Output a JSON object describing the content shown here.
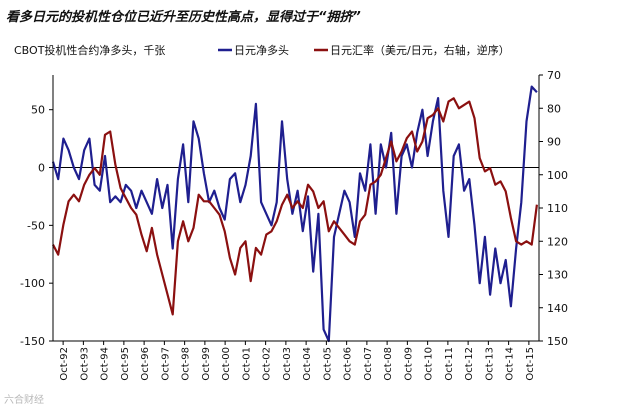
{
  "page": {
    "title": "看多日元的投机性仓位已近升至历史性高点，显得过于“拥挤”",
    "watermark": "六合财经"
  },
  "chart_data": {
    "type": "line",
    "title": "看多日元的投机性仓位已近升至历史性高点，显得过于“拥挤”",
    "left_axis_label": "CBOT投机性合约净多头，千张",
    "right_axis_label": "",
    "ylim": [
      -150,
      80
    ],
    "y_ticks": [
      50,
      0,
      -50,
      -100,
      -150
    ],
    "y2lim": [
      150,
      70
    ],
    "y2_ticks": [
      70,
      80,
      90,
      100,
      110,
      120,
      130,
      140,
      150
    ],
    "y2_inverted": true,
    "xlim": [
      1992.75,
      2016.1
    ],
    "x_tick_labels": [
      "Oct-92",
      "Oct-93",
      "Oct-94",
      "Oct-95",
      "Oct-96",
      "Oct-97",
      "Oct-98",
      "Oct-99",
      "Oct-00",
      "Oct-01",
      "Oct-02",
      "Oct-03",
      "Oct-04",
      "Oct-05",
      "Oct-06",
      "Oct-07",
      "Oct-08",
      "Oct-09",
      "Oct-10",
      "Oct-11",
      "Oct-12",
      "Oct-13",
      "Oct-14",
      "Oct-15"
    ],
    "colors": {
      "net_long": "#1f1f8f",
      "usdjpy": "#8b1010",
      "axis": "#000000"
    },
    "series": [
      {
        "name": "日元净多头",
        "axis": "left",
        "x": [
          1992.75,
          1993.0,
          1993.25,
          1993.5,
          1993.75,
          1994.0,
          1994.25,
          1994.5,
          1994.75,
          1995.0,
          1995.25,
          1995.5,
          1995.75,
          1996.0,
          1996.25,
          1996.5,
          1996.75,
          1997.0,
          1997.25,
          1997.5,
          1997.75,
          1998.0,
          1998.25,
          1998.5,
          1998.75,
          1999.0,
          1999.25,
          1999.5,
          1999.75,
          2000.0,
          2000.25,
          2000.5,
          2000.75,
          2001.0,
          2001.25,
          2001.5,
          2001.75,
          2002.0,
          2002.25,
          2002.5,
          2002.75,
          2003.0,
          2003.25,
          2003.5,
          2003.75,
          2004.0,
          2004.25,
          2004.5,
          2004.75,
          2005.0,
          2005.25,
          2005.5,
          2005.75,
          2006.0,
          2006.25,
          2006.5,
          2006.75,
          2007.0,
          2007.25,
          2007.5,
          2007.75,
          2008.0,
          2008.25,
          2008.5,
          2008.75,
          2009.0,
          2009.25,
          2009.5,
          2009.75,
          2010.0,
          2010.25,
          2010.5,
          2010.75,
          2011.0,
          2011.25,
          2011.5,
          2011.75,
          2012.0,
          2012.25,
          2012.5,
          2012.75,
          2013.0,
          2013.25,
          2013.5,
          2013.75,
          2014.0,
          2014.25,
          2014.5,
          2014.75,
          2015.0,
          2015.25,
          2015.5,
          2015.75,
          2016.0
        ],
        "values": [
          5,
          -10,
          25,
          15,
          0,
          -10,
          15,
          25,
          -15,
          -20,
          10,
          -30,
          -25,
          -30,
          -15,
          -20,
          -35,
          -20,
          -30,
          -40,
          -10,
          -35,
          -15,
          -70,
          -10,
          20,
          -30,
          40,
          25,
          -5,
          -30,
          -20,
          -35,
          -45,
          -10,
          -5,
          -30,
          -15,
          10,
          55,
          -30,
          -40,
          -50,
          -30,
          40,
          -10,
          -40,
          -20,
          -55,
          -25,
          -90,
          -40,
          -140,
          -150,
          -60,
          -40,
          -20,
          -30,
          -60,
          -5,
          -20,
          20,
          -40,
          20,
          0,
          30,
          -40,
          10,
          20,
          0,
          30,
          50,
          10,
          40,
          60,
          -20,
          -60,
          10,
          20,
          -20,
          -10,
          -50,
          -100,
          -60,
          -110,
          -70,
          -100,
          -80,
          -120,
          -70,
          -30,
          40,
          70,
          65
        ]
      },
      {
        "name": "日元汇率（美元/日元，右轴，逆序）",
        "axis": "right",
        "x": [
          1992.75,
          1993.0,
          1993.25,
          1993.5,
          1993.75,
          1994.0,
          1994.25,
          1994.5,
          1994.75,
          1995.0,
          1995.25,
          1995.5,
          1995.75,
          1996.0,
          1996.25,
          1996.5,
          1996.75,
          1997.0,
          1997.25,
          1997.5,
          1997.75,
          1998.0,
          1998.25,
          1998.5,
          1998.75,
          1999.0,
          1999.25,
          1999.5,
          1999.75,
          2000.0,
          2000.25,
          2000.5,
          2000.75,
          2001.0,
          2001.25,
          2001.5,
          2001.75,
          2002.0,
          2002.25,
          2002.5,
          2002.75,
          2003.0,
          2003.25,
          2003.5,
          2003.75,
          2004.0,
          2004.25,
          2004.5,
          2004.75,
          2005.0,
          2005.25,
          2005.5,
          2005.75,
          2006.0,
          2006.25,
          2006.5,
          2006.75,
          2007.0,
          2007.25,
          2007.5,
          2007.75,
          2008.0,
          2008.25,
          2008.5,
          2008.75,
          2009.0,
          2009.25,
          2009.5,
          2009.75,
          2010.0,
          2010.25,
          2010.5,
          2010.75,
          2011.0,
          2011.25,
          2011.5,
          2011.75,
          2012.0,
          2012.25,
          2012.5,
          2012.75,
          2013.0,
          2013.25,
          2013.5,
          2013.75,
          2014.0,
          2014.25,
          2014.5,
          2014.75,
          2015.0,
          2015.25,
          2015.5,
          2015.75,
          2016.0
        ],
        "values": [
          121,
          124,
          115,
          108,
          106,
          108,
          103,
          100,
          98,
          100,
          88,
          87,
          97,
          104,
          107,
          110,
          112,
          118,
          123,
          116,
          124,
          130,
          136,
          142,
          120,
          114,
          120,
          116,
          106,
          108,
          108,
          110,
          112,
          117,
          125,
          130,
          122,
          120,
          132,
          122,
          124,
          118,
          117,
          114,
          109,
          106,
          110,
          108,
          110,
          103,
          105,
          110,
          108,
          117,
          114,
          116,
          118,
          120,
          121,
          114,
          112,
          103,
          102,
          100,
          95,
          90,
          96,
          93,
          89,
          87,
          93,
          90,
          83,
          82,
          80,
          84,
          78,
          77,
          80,
          79,
          78,
          83,
          95,
          99,
          98,
          103,
          102,
          105,
          113,
          120,
          121,
          120,
          121,
          109
        ]
      }
    ]
  }
}
